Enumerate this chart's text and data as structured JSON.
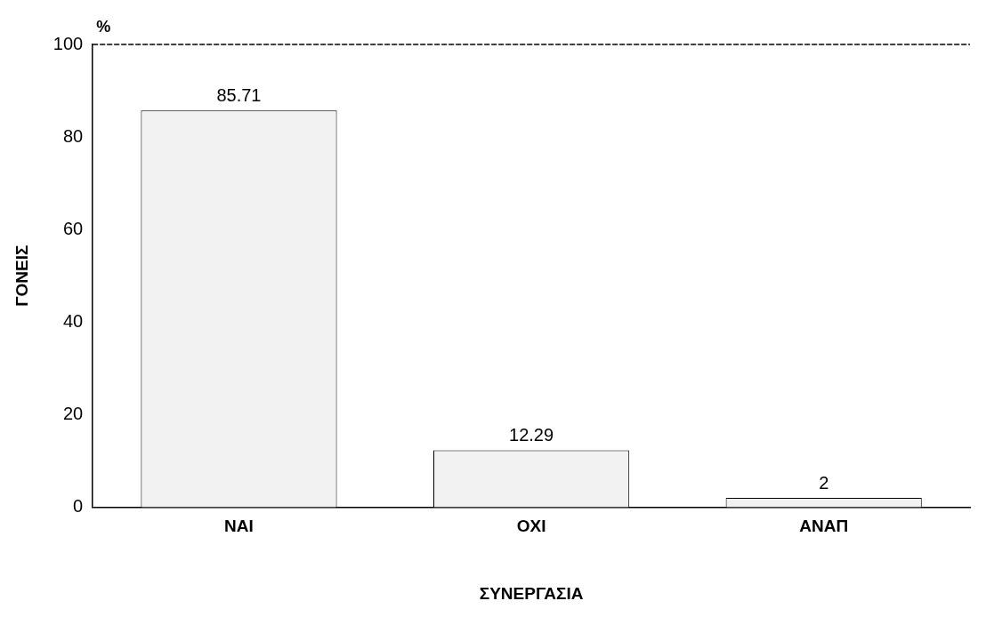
{
  "chart_data": {
    "type": "bar",
    "xlabel": "ΣΥΝΕΡΓΑΣΙΑ",
    "ylabel": "ΓΟΝΕΙΣ",
    "annotations": [
      "%"
    ],
    "categories": [
      "ΝΑΙ",
      "ΟΧΙ",
      "ΑΝΑΠ"
    ],
    "values": [
      85.71,
      12.29,
      2
    ],
    "value_labels": [
      "85.71",
      "12.29",
      "2"
    ],
    "color": "#f2f2f2",
    "ylim": [
      0,
      100
    ],
    "yticks": [
      0,
      20,
      40,
      60,
      80,
      100
    ],
    "grid": false,
    "legend": false
  }
}
